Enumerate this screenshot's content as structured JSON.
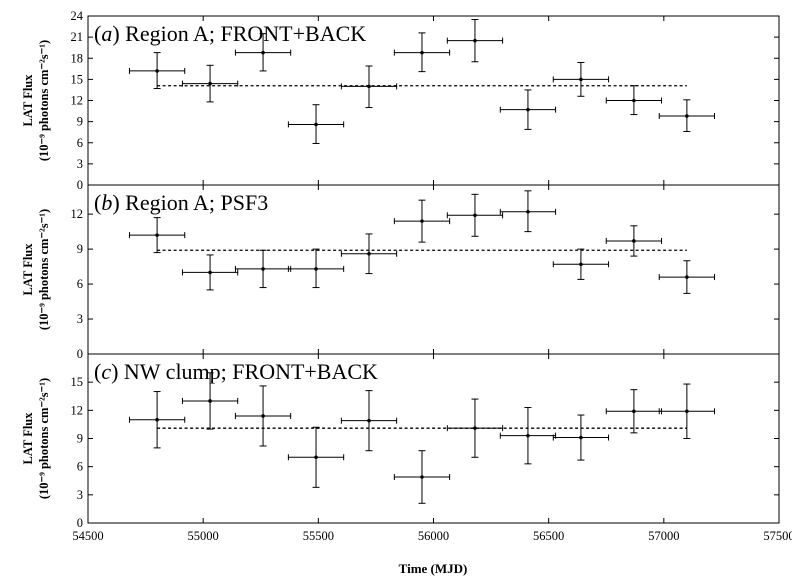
{
  "chart_data": {
    "type": "scatter",
    "xlabel": "Time (MJD)",
    "xlim": [
      54500,
      57500
    ],
    "xticks": [
      54500,
      55000,
      55500,
      56000,
      56500,
      57000,
      57500
    ],
    "panels": [
      {
        "title_letter": "a",
        "title_text": "Region A; FRONT+BACK",
        "ylabel_line1": "LAT Flux",
        "ylabel_line2": "(10⁻⁹ photons cm⁻²s⁻¹)",
        "ylim": [
          0,
          24
        ],
        "yticks": [
          0,
          3,
          6,
          9,
          12,
          15,
          18,
          21,
          24
        ],
        "mean": 14.1,
        "mean_range": [
          54800,
          57100
        ],
        "points": [
          {
            "x": 54800,
            "y": 16.2,
            "xerr": 120,
            "yerr_lo": 2.5,
            "yerr_hi": 2.6
          },
          {
            "x": 55030,
            "y": 14.4,
            "xerr": 120,
            "yerr_lo": 2.6,
            "yerr_hi": 2.6
          },
          {
            "x": 55260,
            "y": 18.8,
            "xerr": 120,
            "yerr_lo": 2.6,
            "yerr_hi": 2.7
          },
          {
            "x": 55490,
            "y": 8.6,
            "xerr": 120,
            "yerr_lo": 2.7,
            "yerr_hi": 2.8
          },
          {
            "x": 55720,
            "y": 14.0,
            "xerr": 120,
            "yerr_lo": 3.0,
            "yerr_hi": 2.9
          },
          {
            "x": 55950,
            "y": 18.8,
            "xerr": 120,
            "yerr_lo": 2.7,
            "yerr_hi": 2.8
          },
          {
            "x": 56180,
            "y": 20.5,
            "xerr": 120,
            "yerr_lo": 3.0,
            "yerr_hi": 3.0
          },
          {
            "x": 56410,
            "y": 10.7,
            "xerr": 120,
            "yerr_lo": 2.8,
            "yerr_hi": 2.8
          },
          {
            "x": 56640,
            "y": 15.0,
            "xerr": 120,
            "yerr_lo": 2.4,
            "yerr_hi": 2.4
          },
          {
            "x": 56870,
            "y": 12.0,
            "xerr": 120,
            "yerr_lo": 2.0,
            "yerr_hi": 2.1
          },
          {
            "x": 57100,
            "y": 9.8,
            "xerr": 120,
            "yerr_lo": 2.2,
            "yerr_hi": 2.3
          }
        ]
      },
      {
        "title_letter": "b",
        "title_text": "Region A; PSF3",
        "ylabel_line1": "LAT Flux",
        "ylabel_line2": "(10⁻⁹ photons cm⁻²s⁻¹)",
        "ylim": [
          0,
          14.5
        ],
        "yticks": [
          0,
          3,
          6,
          9,
          12
        ],
        "mean": 8.9,
        "mean_range": [
          54800,
          57100
        ],
        "points": [
          {
            "x": 54800,
            "y": 10.2,
            "xerr": 120,
            "yerr_lo": 1.5,
            "yerr_hi": 1.5
          },
          {
            "x": 55030,
            "y": 7.0,
            "xerr": 120,
            "yerr_lo": 1.5,
            "yerr_hi": 1.5
          },
          {
            "x": 55260,
            "y": 7.3,
            "xerr": 120,
            "yerr_lo": 1.6,
            "yerr_hi": 1.6
          },
          {
            "x": 55490,
            "y": 7.3,
            "xerr": 120,
            "yerr_lo": 1.6,
            "yerr_hi": 1.7
          },
          {
            "x": 55720,
            "y": 8.6,
            "xerr": 120,
            "yerr_lo": 1.7,
            "yerr_hi": 1.7
          },
          {
            "x": 55950,
            "y": 11.4,
            "xerr": 120,
            "yerr_lo": 1.8,
            "yerr_hi": 1.8
          },
          {
            "x": 56180,
            "y": 11.9,
            "xerr": 120,
            "yerr_lo": 1.8,
            "yerr_hi": 1.8
          },
          {
            "x": 56410,
            "y": 12.2,
            "xerr": 120,
            "yerr_lo": 1.7,
            "yerr_hi": 1.8
          },
          {
            "x": 56640,
            "y": 7.7,
            "xerr": 120,
            "yerr_lo": 1.3,
            "yerr_hi": 1.3
          },
          {
            "x": 56870,
            "y": 9.7,
            "xerr": 120,
            "yerr_lo": 1.3,
            "yerr_hi": 1.3
          },
          {
            "x": 57100,
            "y": 6.6,
            "xerr": 120,
            "yerr_lo": 1.4,
            "yerr_hi": 1.4
          }
        ]
      },
      {
        "title_letter": "c",
        "title_text": "NW clump; FRONT+BACK",
        "ylabel_line1": "LAT Flux",
        "ylabel_line2": "(10⁻⁹ photons cm⁻²s⁻¹)",
        "ylim": [
          0,
          18
        ],
        "yticks": [
          0,
          3,
          6,
          9,
          12,
          15
        ],
        "mean": 10.1,
        "mean_range": [
          54800,
          57100
        ],
        "points": [
          {
            "x": 54800,
            "y": 11.0,
            "xerr": 120,
            "yerr_lo": 3.0,
            "yerr_hi": 3.0
          },
          {
            "x": 55030,
            "y": 13.0,
            "xerr": 120,
            "yerr_lo": 3.0,
            "yerr_hi": 3.0
          },
          {
            "x": 55260,
            "y": 11.4,
            "xerr": 120,
            "yerr_lo": 3.2,
            "yerr_hi": 3.2
          },
          {
            "x": 55490,
            "y": 7.0,
            "xerr": 120,
            "yerr_lo": 3.2,
            "yerr_hi": 3.2
          },
          {
            "x": 55720,
            "y": 10.9,
            "xerr": 120,
            "yerr_lo": 3.2,
            "yerr_hi": 3.2
          },
          {
            "x": 55950,
            "y": 4.9,
            "xerr": 120,
            "yerr_lo": 2.8,
            "yerr_hi": 2.8
          },
          {
            "x": 56180,
            "y": 10.1,
            "xerr": 120,
            "yerr_lo": 3.1,
            "yerr_hi": 3.1
          },
          {
            "x": 56410,
            "y": 9.3,
            "xerr": 120,
            "yerr_lo": 3.0,
            "yerr_hi": 3.0
          },
          {
            "x": 56640,
            "y": 9.1,
            "xerr": 120,
            "yerr_lo": 2.4,
            "yerr_hi": 2.4
          },
          {
            "x": 56870,
            "y": 11.9,
            "xerr": 120,
            "yerr_lo": 2.3,
            "yerr_hi": 2.3
          },
          {
            "x": 57100,
            "y": 11.9,
            "xerr": 120,
            "yerr_lo": 2.9,
            "yerr_hi": 2.9
          }
        ]
      }
    ]
  }
}
